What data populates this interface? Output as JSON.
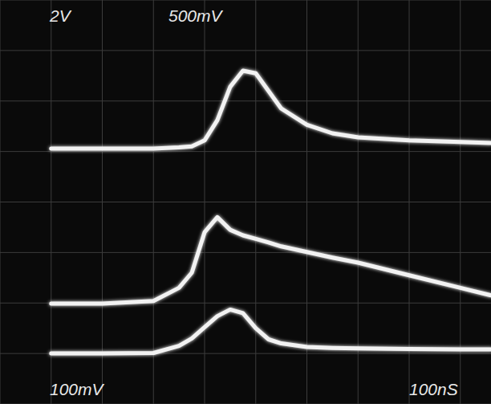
{
  "chart_data": {
    "type": "line",
    "annotations": [
      "2V",
      "500mV",
      "100mV",
      "100nS"
    ],
    "x": [
      100,
      200,
      300,
      350,
      375,
      400,
      425,
      450,
      475,
      500,
      525,
      550,
      600,
      650,
      700,
      800,
      900,
      960
    ],
    "series": [
      {
        "color": "#f2f2f2",
        "values": [
          5.06,
          5.06,
          5.06,
          5.08,
          5.1,
          5.22,
          5.62,
          6.28,
          6.6,
          6.55,
          6.2,
          5.85,
          5.53,
          5.36,
          5.28,
          5.22,
          5.19,
          5.17
        ]
      },
      {
        "color": "#f2f2f2",
        "values": [
          1.99,
          1.99,
          2.04,
          2.3,
          2.6,
          3.4,
          3.7,
          3.45,
          3.34,
          3.27,
          3.2,
          3.12,
          3.01,
          2.9,
          2.8,
          2.55,
          2.3,
          2.15
        ]
      },
      {
        "color": "#f2f2f2",
        "values": [
          1.0,
          1.0,
          1.01,
          1.15,
          1.3,
          1.52,
          1.74,
          1.87,
          1.8,
          1.5,
          1.28,
          1.2,
          1.13,
          1.11,
          1.1,
          1.09,
          1.08,
          1.08
        ]
      }
    ],
    "xlim": [
      0,
      960
    ],
    "xticks": [
      0,
      100,
      200,
      300,
      400,
      500,
      600,
      700,
      800,
      900
    ],
    "ylim": [
      0,
      8
    ],
    "yticks": [
      0,
      1,
      2,
      3,
      4,
      5,
      6,
      7,
      8
    ],
    "grid": true,
    "tick_labels": false
  }
}
